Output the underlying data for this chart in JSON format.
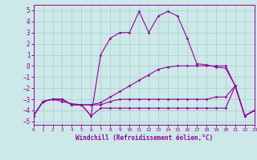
{
  "xlabel": "Windchill (Refroidissement éolien,°C)",
  "background_color": "#cce8e8",
  "grid_color": "#aacccc",
  "line_color": "#990099",
  "x_ticks": [
    0,
    1,
    2,
    3,
    4,
    5,
    6,
    7,
    8,
    9,
    10,
    11,
    12,
    13,
    14,
    15,
    16,
    17,
    18,
    19,
    20,
    21,
    22,
    23
  ],
  "y_ticks": [
    -5,
    -4,
    -3,
    -2,
    -1,
    0,
    1,
    2,
    3,
    4,
    5
  ],
  "xlim": [
    0,
    23
  ],
  "ylim": [
    -5.3,
    5.5
  ],
  "lines": [
    {
      "x": [
        0,
        1,
        2,
        3,
        4,
        5,
        6,
        7,
        8,
        9,
        10,
        11,
        12,
        13,
        14,
        15,
        16,
        17,
        18,
        19,
        20,
        21,
        22,
        23
      ],
      "y": [
        -4.5,
        -3.2,
        -3.0,
        -3.2,
        -3.4,
        -3.5,
        -4.5,
        1.0,
        2.5,
        3.0,
        3.0,
        4.9,
        3.0,
        4.5,
        4.9,
        4.5,
        2.5,
        0.2,
        0.1,
        -0.1,
        -0.2,
        -1.8,
        -4.5,
        -4.0
      ]
    },
    {
      "x": [
        0,
        1,
        2,
        3,
        4,
        5,
        6,
        7,
        8,
        9,
        10,
        11,
        12,
        13,
        14,
        15,
        16,
        17,
        18,
        19,
        20,
        21,
        22,
        23
      ],
      "y": [
        -4.5,
        -3.2,
        -3.0,
        -3.0,
        -3.5,
        -3.5,
        -3.5,
        -3.3,
        -2.8,
        -2.3,
        -1.8,
        -1.3,
        -0.8,
        -0.3,
        -0.1,
        0.0,
        0.0,
        0.0,
        0.0,
        0.0,
        0.0,
        -1.8,
        -4.5,
        -4.0
      ]
    },
    {
      "x": [
        0,
        1,
        2,
        3,
        4,
        5,
        6,
        7,
        8,
        9,
        10,
        11,
        12,
        13,
        14,
        15,
        16,
        17,
        18,
        19,
        20,
        21,
        22,
        23
      ],
      "y": [
        -4.5,
        -3.2,
        -3.0,
        -3.0,
        -3.5,
        -3.5,
        -3.5,
        -3.5,
        -3.2,
        -3.0,
        -3.0,
        -3.0,
        -3.0,
        -3.0,
        -3.0,
        -3.0,
        -3.0,
        -3.0,
        -3.0,
        -2.8,
        -2.8,
        -1.8,
        -4.5,
        -4.0
      ]
    },
    {
      "x": [
        0,
        1,
        2,
        3,
        4,
        5,
        6,
        7,
        8,
        9,
        10,
        11,
        12,
        13,
        14,
        15,
        16,
        17,
        18,
        19,
        20,
        21,
        22,
        23
      ],
      "y": [
        -4.5,
        -3.2,
        -3.0,
        -3.0,
        -3.5,
        -3.5,
        -4.5,
        -3.8,
        -3.8,
        -3.8,
        -3.8,
        -3.8,
        -3.8,
        -3.8,
        -3.8,
        -3.8,
        -3.8,
        -3.8,
        -3.8,
        -3.8,
        -3.8,
        -1.8,
        -4.5,
        -4.0
      ]
    }
  ]
}
